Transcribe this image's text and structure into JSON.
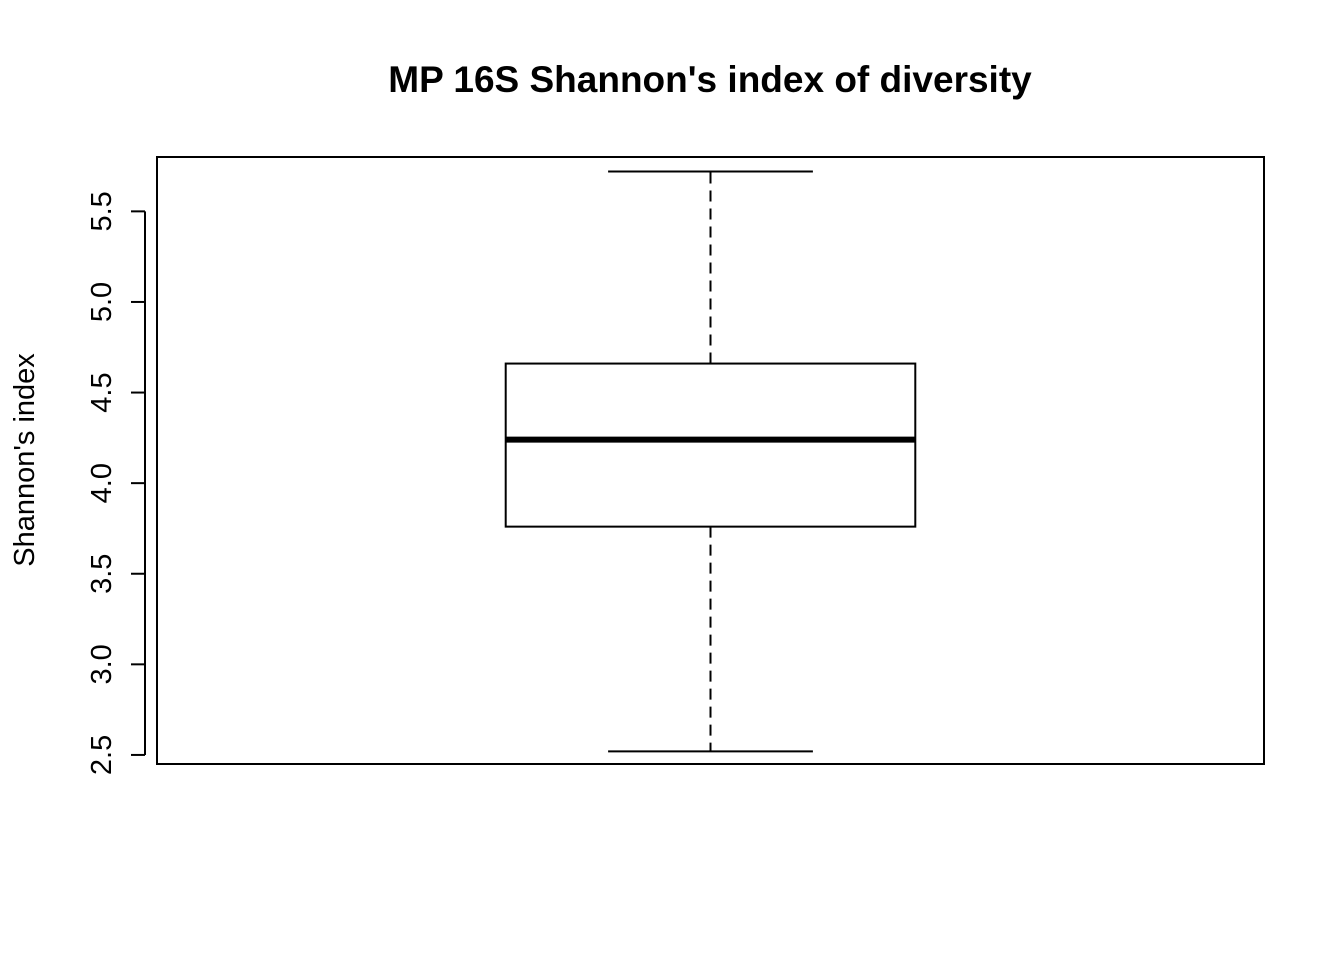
{
  "chart_data": {
    "type": "box",
    "title": "MP 16S Shannon's index of diversity",
    "xlabel": "",
    "ylabel": "Shannon's index",
    "ylim": [
      2.45,
      5.8
    ],
    "yticks": [
      2.5,
      3.0,
      3.5,
      4.0,
      4.5,
      5.0,
      5.5
    ],
    "ytick_labels": [
      "2.5",
      "3.0",
      "3.5",
      "4.0",
      "4.5",
      "5.0",
      "5.5"
    ],
    "grid": false,
    "legend": "none",
    "boxes": [
      {
        "min": 2.52,
        "q1": 3.76,
        "median": 4.24,
        "q3": 4.66,
        "max": 5.72
      }
    ],
    "colors": {
      "box_fill": "#ffffff",
      "stroke": "#000000"
    }
  }
}
